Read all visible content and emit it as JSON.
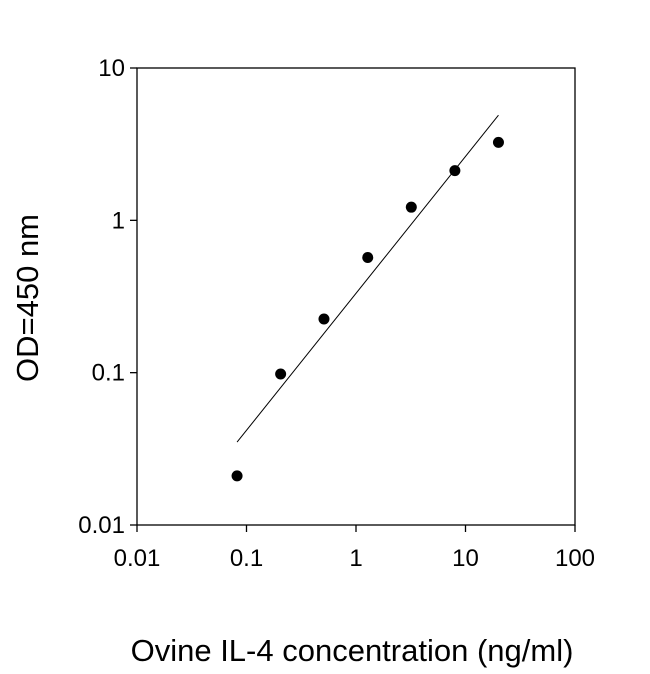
{
  "chart_data": {
    "type": "scatter",
    "title": "",
    "xlabel": "Ovine IL-4 concentration (ng/ml)",
    "ylabel": "OD=450 nm",
    "x_scale": "log",
    "y_scale": "log",
    "xlim": [
      0.01,
      100
    ],
    "ylim": [
      0.01,
      10
    ],
    "x_ticks": [
      0.01,
      0.1,
      1,
      10,
      100
    ],
    "x_tick_labels": [
      "0.01",
      "0.1",
      "1",
      "10",
      "100"
    ],
    "y_ticks": [
      0.01,
      0.1,
      1,
      10
    ],
    "y_tick_labels": [
      "0.01",
      "0.1",
      "1",
      "10"
    ],
    "grid": false,
    "legend": "none",
    "points": {
      "x": [
        0.082,
        0.205,
        0.51,
        1.28,
        3.2,
        8.0,
        20.0
      ],
      "y": [
        0.021,
        0.098,
        0.225,
        0.57,
        1.22,
        2.12,
        3.25
      ]
    },
    "fit_line": {
      "x": [
        0.082,
        20.0
      ],
      "y": [
        0.035,
        4.9
      ]
    },
    "marker_color": "#000000",
    "line_color": "#000000"
  }
}
